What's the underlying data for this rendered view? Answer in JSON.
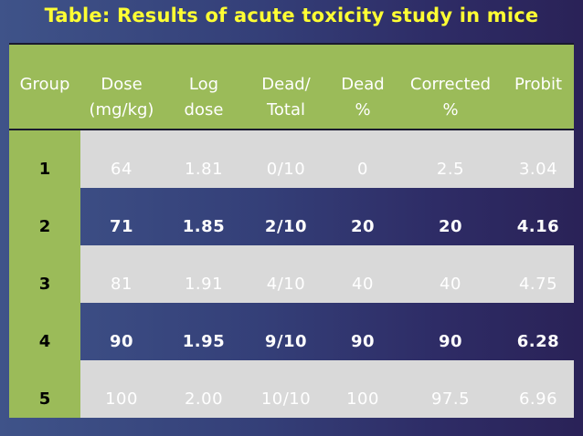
{
  "title": "Table: Results of acute toxicity study in mice",
  "headers": [
    {
      "line1": "Group",
      "line2": ""
    },
    {
      "line1": "Dose",
      "line2": "(mg/kg)"
    },
    {
      "line1": "Log",
      "line2": "dose"
    },
    {
      "line1": "Dead/",
      "line2": "Total"
    },
    {
      "line1": "Dead",
      "line2": "%"
    },
    {
      "line1": "Corrected",
      "line2": "%"
    },
    {
      "line1": "Probit",
      "line2": ""
    }
  ],
  "rows": [
    {
      "group": "1",
      "dose": "64",
      "log_dose": "1.81",
      "dead_total": "0/10",
      "dead_pct": "0",
      "corrected_pct": "2.5",
      "probit": "3.04"
    },
    {
      "group": "2",
      "dose": "71",
      "log_dose": "1.85",
      "dead_total": "2/10",
      "dead_pct": "20",
      "corrected_pct": "20",
      "probit": "4.16"
    },
    {
      "group": "3",
      "dose": "81",
      "log_dose": "1.91",
      "dead_total": "4/10",
      "dead_pct": "40",
      "corrected_pct": "40",
      "probit": "4.75"
    },
    {
      "group": "4",
      "dose": "90",
      "log_dose": "1.95",
      "dead_total": "9/10",
      "dead_pct": "90",
      "corrected_pct": "90",
      "probit": "6.28"
    },
    {
      "group": "5",
      "dose": "100",
      "log_dose": "2.00",
      "dead_total": "10/10",
      "dead_pct": "100",
      "corrected_pct": "97.5",
      "probit": "6.96"
    }
  ],
  "colors": {
    "title": "#ffff33",
    "header_bg": "#9bbb59",
    "light_row": "#d9d9d9"
  }
}
